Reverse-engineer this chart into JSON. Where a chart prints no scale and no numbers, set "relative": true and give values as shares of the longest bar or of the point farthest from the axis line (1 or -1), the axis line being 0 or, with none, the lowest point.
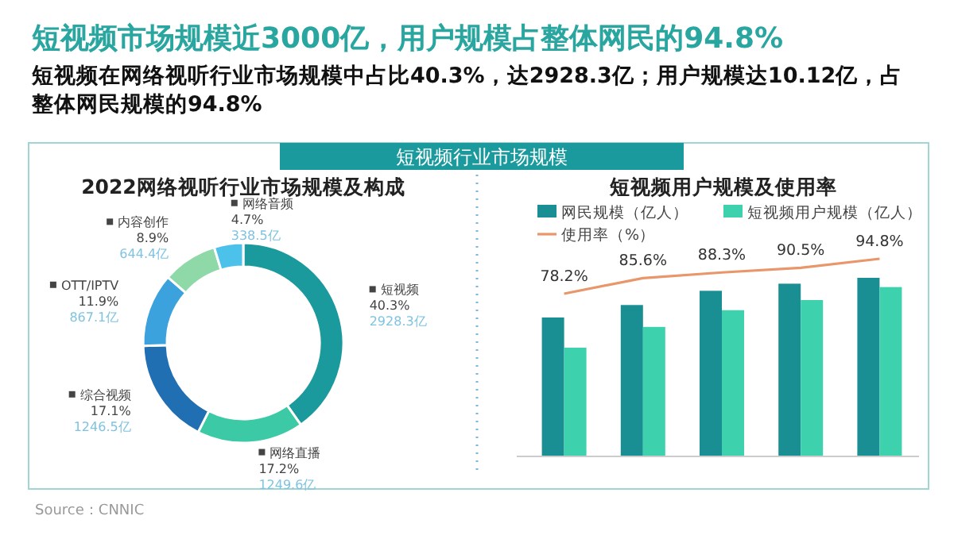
{
  "chart_data": [
    {
      "type": "other",
      "title": "短视频市场规模近3000亿，用户规模占整体网民的94.8%",
      "subtitle": "短视频在网络视听行业市场规模中占比40.3%，达2928.3亿；用户规模达10.12亿，占整体网民规模的94.8%",
      "annotations": [
        "短视频行业市场规模",
        "Source：CNNIC"
      ]
    },
    {
      "type": "donut",
      "title": "2022网络视听行业市场规模及构成",
      "categories": [
        "短视频",
        "网络直播",
        "综合视频",
        "OTT/IPTV",
        "内容创作",
        "网络音频"
      ],
      "values": [
        40.3,
        17.2,
        17.1,
        11.9,
        8.9,
        4.7
      ],
      "colors": [
        "#1a9a9c",
        "#3ccaa6",
        "#1f6fb2",
        "#3ba2dd",
        "#8fd9a9",
        "#4cc1ea"
      ],
      "value_labels": [
        "40.3%",
        "17.2%",
        "17.1%",
        "11.9%",
        "8.9%",
        "4.7%"
      ],
      "annotations": [
        {
          "text": "2928.3亿",
          "x": "短视频"
        },
        {
          "text": "1249.6亿",
          "x": "网络直播"
        },
        {
          "text": "1246.5亿",
          "x": "综合视频"
        },
        {
          "text": "867.1亿",
          "x": "OTT/IPTV"
        },
        {
          "text": "644.4亿",
          "x": "内容创作"
        },
        {
          "text": "338.5亿",
          "x": "网络音频"
        }
      ]
    },
    {
      "type": "bar",
      "title": "短视频用户规模及使用率",
      "relative": true,
      "legend": "top",
      "categories": [
        null,
        null,
        null,
        null,
        null
      ],
      "series": [
        {
          "name": "网民规模（亿人）",
          "type": "bar",
          "color": "#1a8f93",
          "values": [
            0.777,
            0.847,
            0.927,
            0.967,
            1
          ]
        },
        {
          "name": "短视频用户规模（亿人）",
          "type": "bar",
          "color": "#3dd1ad",
          "values": [
            0.607,
            0.724,
            0.818,
            0.875,
            0.948
          ]
        }
      ]
    },
    {
      "type": "line",
      "legend": "top",
      "categories": [
        null,
        null,
        null,
        null,
        null
      ],
      "series": [
        {
          "name": "使用率（%）",
          "color": "#e9966b",
          "values": [
            78.2,
            85.6,
            88.3,
            90.5,
            94.8
          ],
          "value_labels": [
            "78.2%",
            "85.6%",
            "88.3%",
            "90.5%",
            "94.8%"
          ]
        }
      ]
    }
  ]
}
